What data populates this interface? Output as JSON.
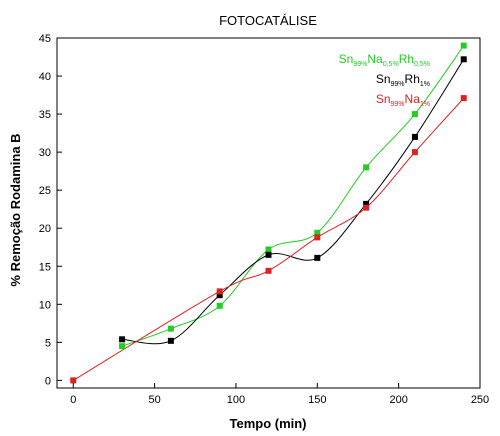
{
  "chart_data": {
    "type": "scatter",
    "title": "FOTOCATÁLISE",
    "xlabel": "Tempo (min)",
    "ylabel": "% Remoção Rodamina B",
    "xlim": [
      -10,
      250
    ],
    "ylim": [
      -1,
      45
    ],
    "x_ticks": [
      0,
      50,
      100,
      150,
      200,
      250
    ],
    "y_ticks": [
      0,
      5,
      10,
      15,
      20,
      25,
      30,
      35,
      40,
      45
    ],
    "grid": false,
    "legend_position": "top-right",
    "series": [
      {
        "name": "Sn99%Na0.5%Rh0.5%",
        "legend_parts": [
          [
            "Sn",
            ""
          ],
          [
            "99%",
            "sub"
          ],
          [
            "Na",
            ""
          ],
          [
            "0,5%",
            "sub"
          ],
          [
            "Rh",
            ""
          ],
          [
            "0,5%",
            "sub"
          ]
        ],
        "color": "#22cc22",
        "x": [
          30,
          60,
          90,
          120,
          150,
          180,
          210,
          240
        ],
        "y": [
          4.5,
          6.8,
          9.8,
          17.2,
          19.4,
          28.0,
          35.0,
          44.0
        ]
      },
      {
        "name": "Sn99%Rh1%",
        "legend_parts": [
          [
            "Sn",
            ""
          ],
          [
            "99%",
            "sub"
          ],
          [
            "Rh",
            ""
          ],
          [
            "1%",
            "sub"
          ]
        ],
        "color": "#000000",
        "x": [
          30,
          60,
          90,
          120,
          150,
          180,
          210,
          240
        ],
        "y": [
          5.4,
          5.2,
          11.2,
          16.5,
          16.1,
          23.2,
          32.0,
          42.2
        ]
      },
      {
        "name": "Sn99%Na1%",
        "legend_parts": [
          [
            "Sn",
            ""
          ],
          [
            "99%",
            "sub"
          ],
          [
            "Na",
            ""
          ],
          [
            "1%",
            "sub"
          ]
        ],
        "color": "#dd2222",
        "x": [
          0,
          90,
          120,
          150,
          180,
          210,
          240
        ],
        "y": [
          0,
          11.7,
          14.4,
          18.8,
          22.7,
          30.0,
          37.1
        ]
      }
    ]
  }
}
